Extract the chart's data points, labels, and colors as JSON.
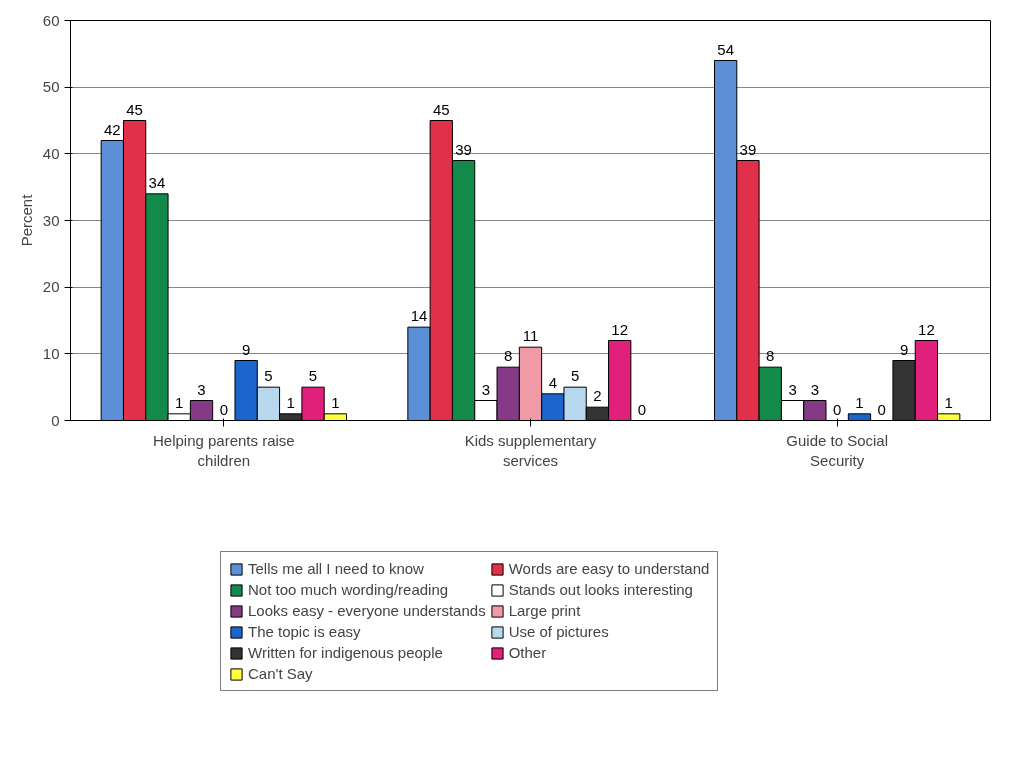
{
  "chart_data": {
    "type": "bar",
    "ylabel": "Percent",
    "categories": [
      "Helping parents raise children",
      "Kids supplementary services",
      "Guide to Social Security"
    ],
    "ylim": [
      0,
      60
    ],
    "yticks": [
      0,
      10,
      20,
      30,
      40,
      50,
      60
    ],
    "grid": "y",
    "legend": "bottom",
    "data_labels": true,
    "series": [
      {
        "name": "Tells me all I need to know",
        "color": "#5b8fd6",
        "values": [
          42,
          14,
          54
        ]
      },
      {
        "name": "Words are easy to understand",
        "color": "#e0304a",
        "values": [
          45,
          45,
          39
        ]
      },
      {
        "name": "Not too much wording/reading",
        "color": "#138a4a",
        "values": [
          34,
          39,
          8
        ]
      },
      {
        "name": "Stands out looks interesting",
        "color": "#ffffff",
        "values": [
          1,
          3,
          3
        ]
      },
      {
        "name": "Looks easy - everyone understands",
        "color": "#853a85",
        "values": [
          3,
          8,
          3
        ]
      },
      {
        "name": "Large print",
        "color": "#f09aa8",
        "values": [
          0,
          11,
          0
        ]
      },
      {
        "name": "The topic is easy",
        "color": "#1a66cc",
        "values": [
          9,
          4,
          1
        ]
      },
      {
        "name": "Use of pictures",
        "color": "#b8d8ee",
        "values": [
          5,
          5,
          0
        ]
      },
      {
        "name": "Written for indigenous people",
        "color": "#333333",
        "values": [
          1,
          2,
          9
        ]
      },
      {
        "name": "Other",
        "color": "#e0207a",
        "values": [
          5,
          12,
          12
        ]
      },
      {
        "name": "Can't Say",
        "color": "#ffff40",
        "values": [
          1,
          0,
          1
        ]
      }
    ]
  }
}
